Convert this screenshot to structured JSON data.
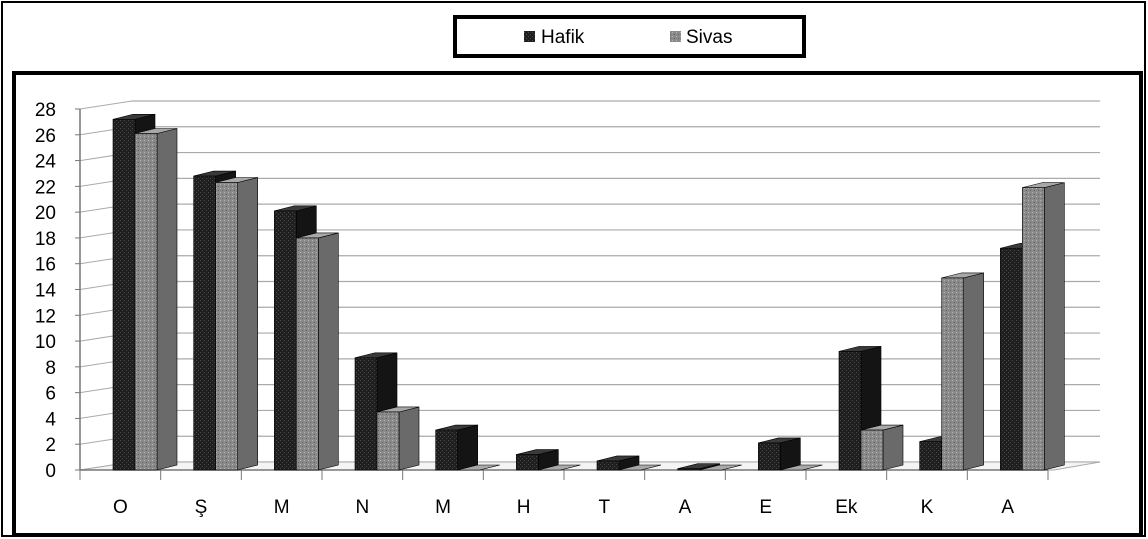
{
  "chart_data": {
    "type": "bar",
    "title": "",
    "xlabel": "",
    "ylabel": "",
    "categories": [
      "O",
      "Ş",
      "M",
      "N",
      "M",
      "H",
      "T",
      "A",
      "E",
      "Ek",
      "K",
      "A"
    ],
    "series": [
      {
        "name": "Hafik",
        "values": [
          27.2,
          22.8,
          20.1,
          8.7,
          3.1,
          1.2,
          0.7,
          0.1,
          2.1,
          9.2,
          2.2,
          17.2
        ]
      },
      {
        "name": "Sivas",
        "values": [
          26.1,
          22.3,
          18.0,
          4.5,
          0.0,
          0.0,
          0.0,
          0.0,
          0.0,
          3.1,
          14.9,
          21.9
        ]
      }
    ],
    "ylim": [
      0,
      28
    ],
    "yticks": [
      0,
      2,
      4,
      6,
      8,
      10,
      12,
      14,
      16,
      18,
      20,
      22,
      24,
      26,
      28
    ],
    "grid": true,
    "legend_position": "top-center",
    "colors": {
      "Hafik": "#262626",
      "Sivas": "#8c8c8c"
    }
  }
}
